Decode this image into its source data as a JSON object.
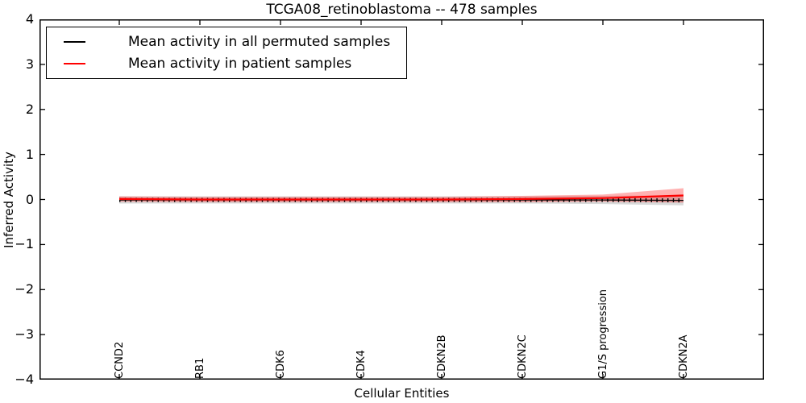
{
  "window": {
    "kind": "matplotlib-figure"
  },
  "chart_data": {
    "type": "line",
    "title": "TCGA08_retinoblastoma -- 478 samples",
    "xlabel": "Cellular Entities",
    "ylabel": "Inferred Activity",
    "ylim": [
      -4,
      4
    ],
    "y_tick_labels": [
      "4",
      "3",
      "2",
      "1",
      "0",
      "−1",
      "−2",
      "−3",
      "−4"
    ],
    "categories": [
      "CCND2",
      "RB1",
      "CDK6",
      "CDK4",
      "CDKN2B",
      "CDKN2C",
      "G1/S progression",
      "CDKN2A"
    ],
    "grid": false,
    "legend_position": "upper left",
    "axis_color": "#000000",
    "series": [
      {
        "name": "Mean activity in all permuted samples",
        "color": "#000000",
        "line_style": "solid-with-tick-markers",
        "values": [
          -0.01,
          -0.01,
          -0.01,
          -0.01,
          -0.01,
          -0.01,
          -0.01,
          -0.02
        ],
        "band_halfwidth": [
          0.08,
          0.08,
          0.08,
          0.08,
          0.08,
          0.08,
          0.09,
          0.11
        ],
        "band_color": "rgba(0,0,0,0.15)"
      },
      {
        "name": "Mean activity in patient samples",
        "color": "#ff0000",
        "line_style": "solid",
        "values": [
          0.01,
          0.0,
          0.0,
          0.0,
          0.0,
          0.01,
          0.03,
          0.09
        ],
        "band_halfwidth": [
          0.06,
          0.06,
          0.06,
          0.06,
          0.06,
          0.07,
          0.08,
          0.16
        ],
        "band_color": "rgba(255,0,0,0.30)"
      }
    ]
  }
}
